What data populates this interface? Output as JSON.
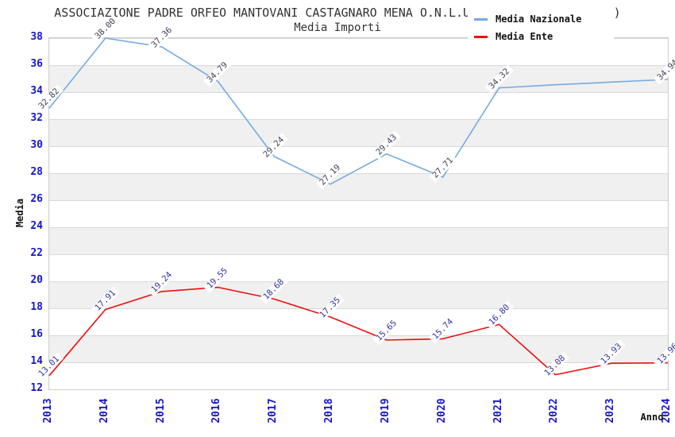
{
  "header": {
    "title": "ASSOCIAZIONE PADRE ORFEO MANTOVANI CASTAGNARO MENA O.N.L.U.S. (c.f.91020550231)",
    "subtitle": "Media Importi"
  },
  "axes": {
    "y_label": "Media",
    "x_label": "Anno"
  },
  "colors": {
    "nazionale_line": "#76a9e1",
    "ente_line": "#ee0f0f",
    "tick_label": "#1515cc",
    "band_gray": "#f0f0f0",
    "plot_border": "#cccccc"
  },
  "chart_data": {
    "type": "line",
    "title": "ASSOCIAZIONE PADRE ORFEO MANTOVANI CASTAGNARO MENA O.N.L.U.S. (c.f.91020550231)",
    "subtitle": "Media Importi",
    "xlabel": "Anno",
    "ylabel": "Media",
    "x": [
      2013,
      2014,
      2015,
      2016,
      2017,
      2018,
      2019,
      2020,
      2021,
      2022,
      2023,
      2024
    ],
    "ylim": [
      12,
      38
    ],
    "y_tick_step": 2,
    "y_ticks": [
      12,
      14,
      16,
      18,
      20,
      22,
      24,
      26,
      28,
      30,
      32,
      34,
      36,
      38
    ],
    "grid": "horizontal-bands-alternating",
    "legend_position": "top-right-inside",
    "series": [
      {
        "name": "Media Nazionale",
        "color": "#76a9e1",
        "label_color": "#3f3f52",
        "values": [
          32.82,
          38.0,
          37.36,
          34.79,
          29.24,
          27.19,
          29.43,
          27.71,
          34.32,
          34.55,
          34.75,
          34.94
        ],
        "labels": [
          "32.82",
          "38.00",
          "37.36",
          "34.79",
          "29.24",
          "27.19",
          "29.43",
          "27.71",
          "34.32",
          "",
          "",
          "34.94"
        ]
      },
      {
        "name": "Media Ente",
        "color": "#ee0f0f",
        "label_color": "#31319e",
        "values": [
          13.01,
          17.91,
          19.24,
          19.55,
          18.68,
          17.35,
          15.65,
          15.74,
          16.8,
          13.08,
          13.93,
          13.96
        ],
        "labels": [
          "13.01",
          "17.91",
          "19.24",
          "19.55",
          "18.68",
          "17.35",
          "15.65",
          "15.74",
          "16.80",
          "13.08",
          "13.93",
          "13.96"
        ]
      }
    ]
  }
}
